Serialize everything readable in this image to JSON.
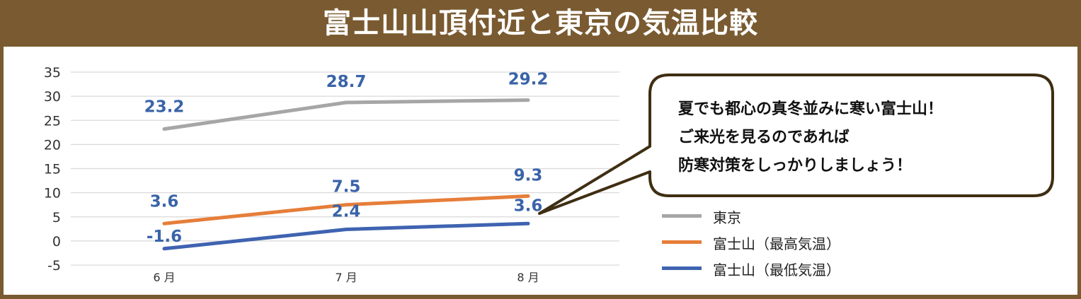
{
  "title": "富士山山頂付近と東京の気温比較",
  "callout": {
    "lines": [
      "夏でも都心の真冬並みに寒い富士山！",
      "ご来光を見るのであれば",
      "防寒対策をしっかりしましょう！"
    ]
  },
  "chart_data": {
    "type": "line",
    "title": "富士山山頂付近と東京の気温比較",
    "xlabel": "",
    "ylabel": "",
    "categories": [
      "6 月",
      "7 月",
      "8 月"
    ],
    "yticks": [
      "35",
      "30",
      "25",
      "20",
      "15",
      "10",
      "5",
      "0",
      "-5"
    ],
    "ylim": [
      -5,
      35
    ],
    "grid": true,
    "legend_position": "right",
    "series": [
      {
        "name": "東京",
        "values": [
          23.2,
          28.7,
          29.2
        ],
        "labels": [
          "23.2",
          "28.7",
          "29.2"
        ],
        "color": "#a6a6a6"
      },
      {
        "name": "富士山（最高気温）",
        "values": [
          3.6,
          7.5,
          9.3
        ],
        "labels": [
          "3.6",
          "7.5",
          "9.3"
        ],
        "color": "#e67e3a"
      },
      {
        "name": "富士山（最低気温）",
        "values": [
          -1.6,
          2.4,
          3.6
        ],
        "labels": [
          "-1.6",
          "2.4",
          "3.6"
        ],
        "color": "#3f63b0"
      }
    ],
    "label_color": "#3a64a8"
  }
}
